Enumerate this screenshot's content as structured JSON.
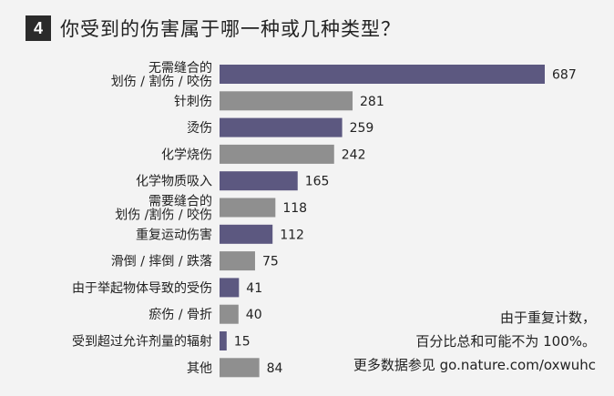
{
  "question_number": "4",
  "title": "你受到的伤害属于哪一种或几种类型？",
  "chart_data": {
    "type": "bar",
    "orientation": "horizontal",
    "categories": [
      [
        "无需缝合的",
        "划伤 / 割伤 / 咬伤"
      ],
      [
        "针刺伤"
      ],
      [
        "烫伤"
      ],
      [
        "化学烧伤"
      ],
      [
        "化学物质吸入"
      ],
      [
        "需要缝合的",
        "划伤 /割伤 / 咬伤"
      ],
      [
        "重复运动伤害"
      ],
      [
        "滑倒 / 摔倒 / 跌落"
      ],
      [
        "由于举起物体导致的受伤"
      ],
      [
        "瘀伤 / 骨折"
      ],
      [
        "受到超过允许剂量的辐射"
      ],
      [
        "其他"
      ]
    ],
    "values": [
      687,
      281,
      259,
      242,
      165,
      118,
      112,
      75,
      41,
      40,
      15,
      84
    ],
    "highlighted": [
      true,
      false,
      true,
      false,
      true,
      false,
      true,
      false,
      true,
      false,
      true,
      false
    ],
    "colors": {
      "highlight": "#5c5880",
      "normal": "#8f8f8f"
    },
    "xlim": [
      0,
      687
    ]
  },
  "note": {
    "line1": "由于重复计数，",
    "line2": "百分比总和可能不为 100%。",
    "line3": "更多数据参见 go.nature.com/oxwuhc"
  }
}
